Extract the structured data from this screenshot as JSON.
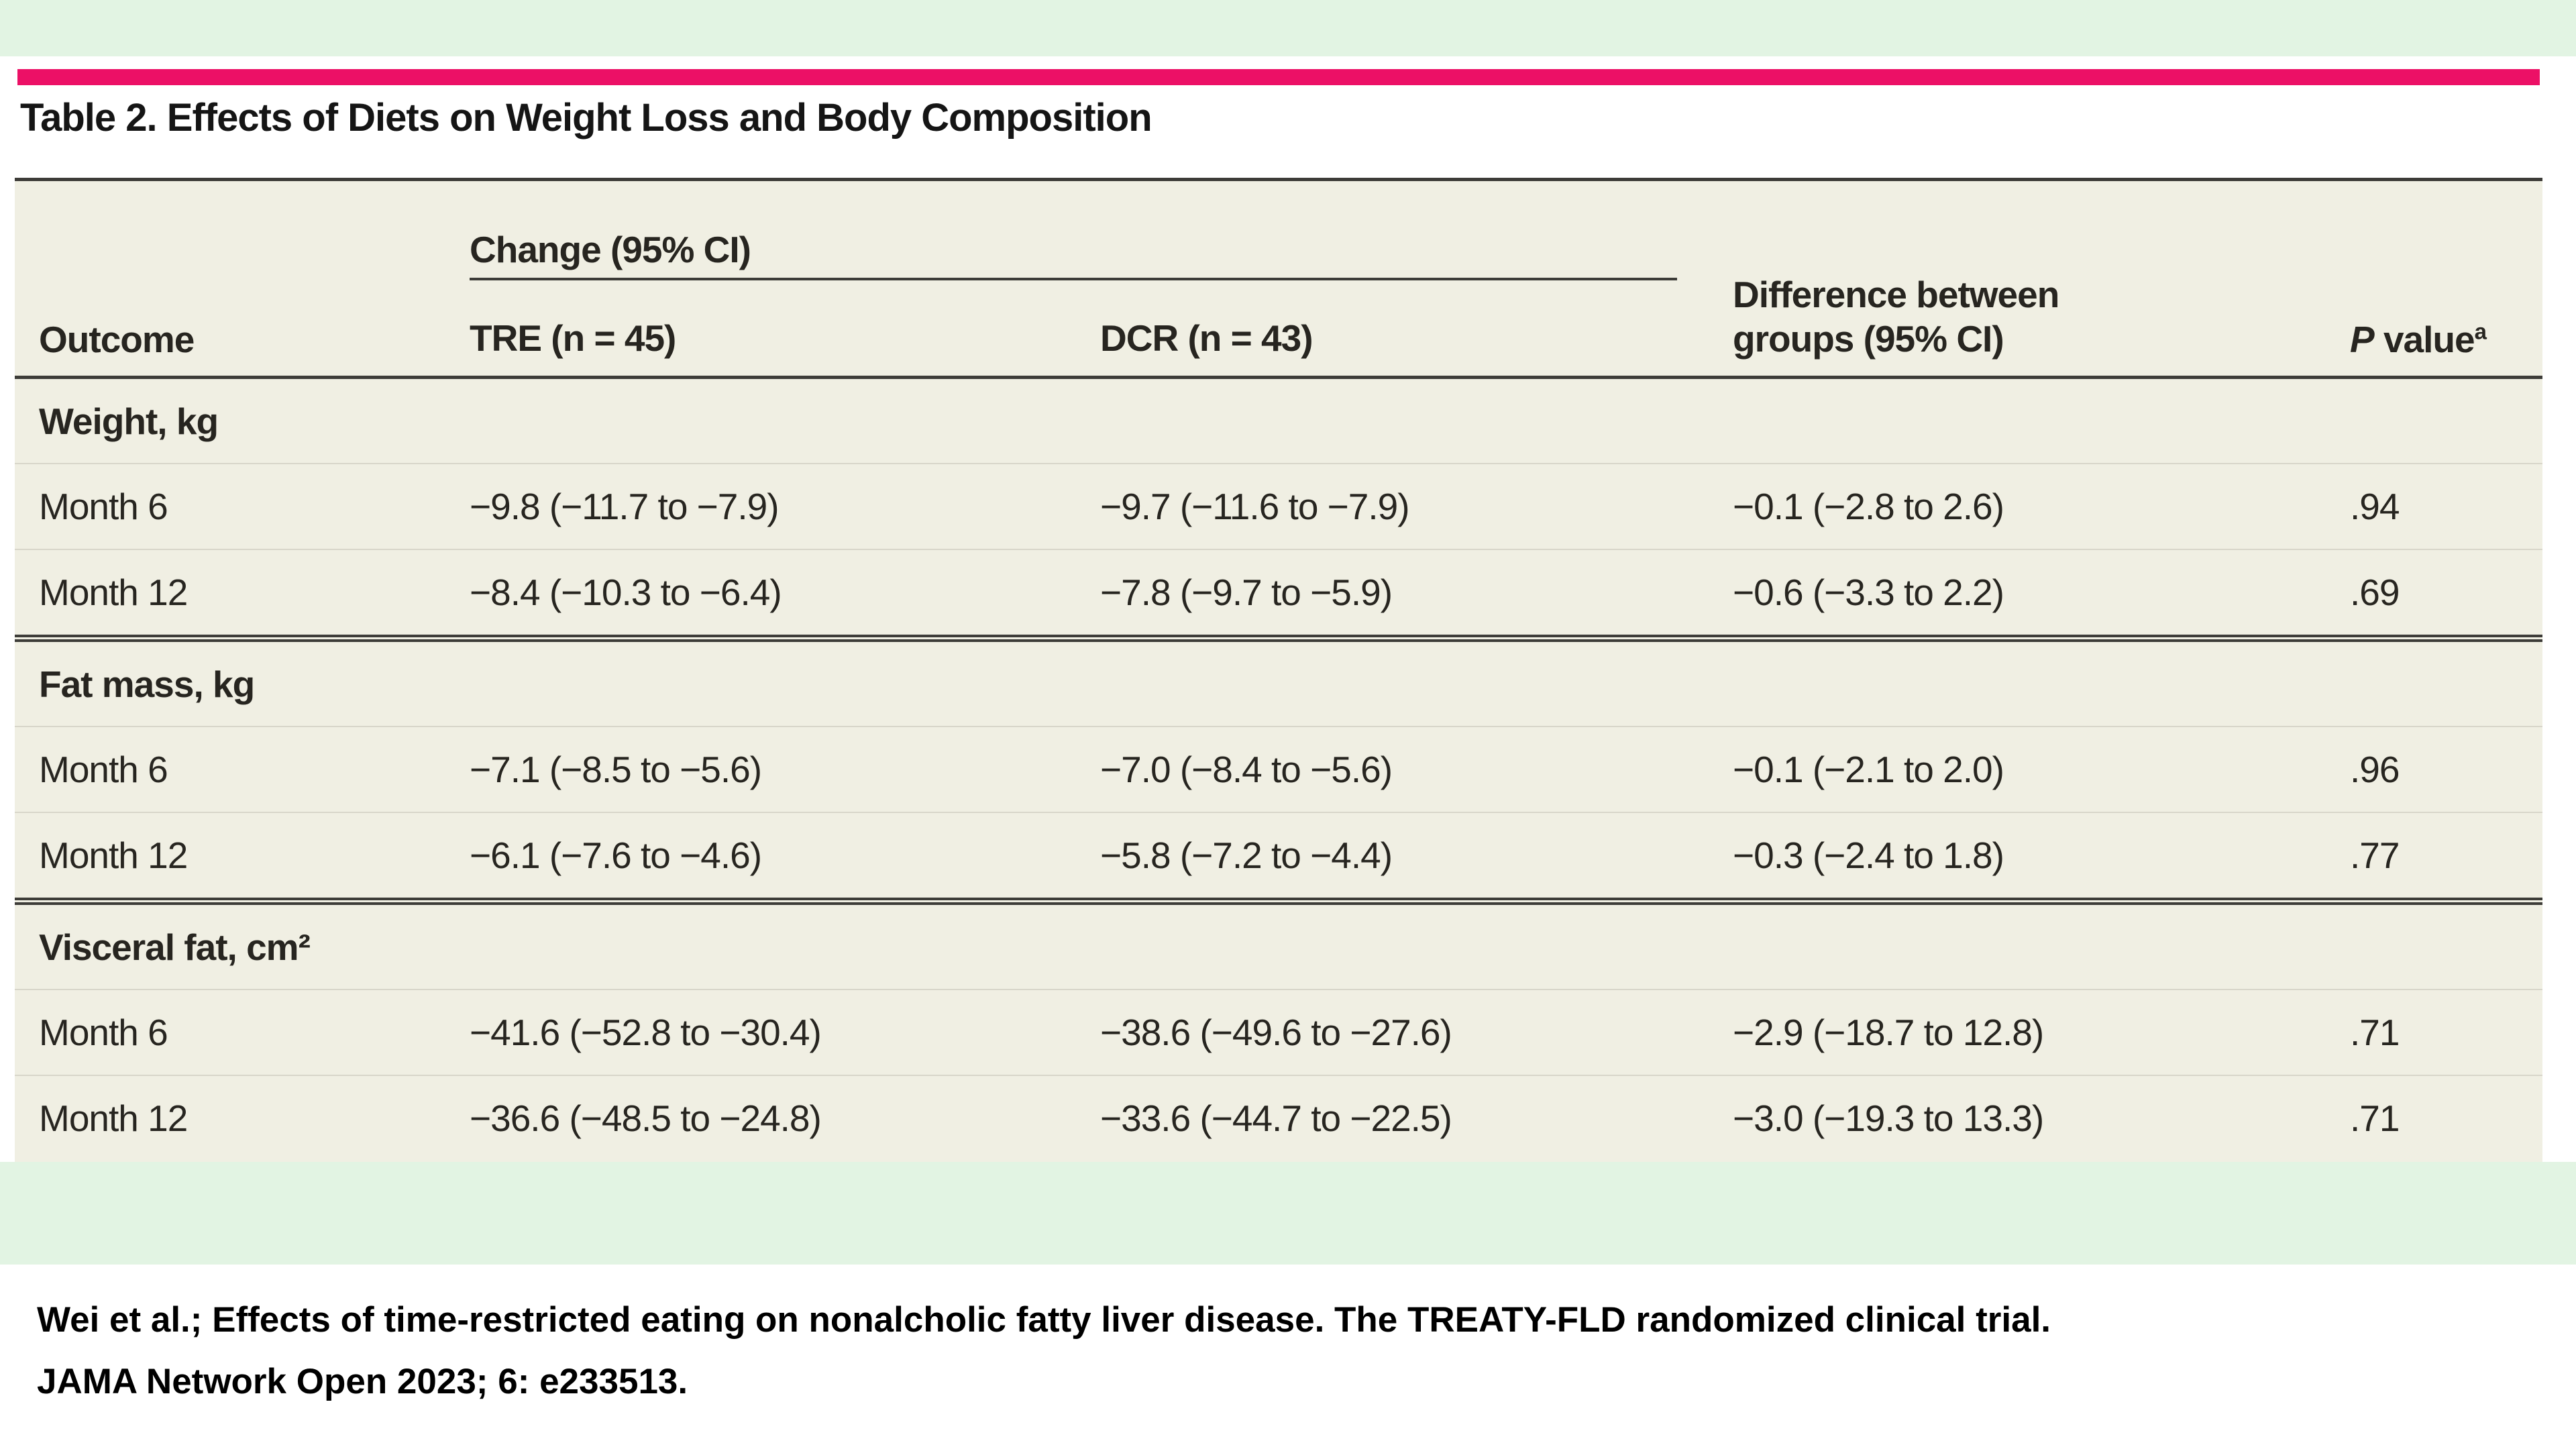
{
  "page": {
    "title": "Table 2. Effects of Diets on Weight Loss and Body Composition",
    "accent_color": "#ec1066",
    "frame_color": "#e2f4e3",
    "table_background": "#f0efe3"
  },
  "table": {
    "spanner_header": "Change (95% CI)",
    "headers": {
      "outcome": "Outcome",
      "tre": "TRE (n = 45)",
      "dcr": "DCR (n = 43)",
      "difference": "Difference between\ngroups (95% CI)",
      "p_prefix": "P",
      "p_rest": " value",
      "p_sup": "a"
    },
    "sections": [
      {
        "label": "Weight, kg",
        "rows": [
          {
            "outcome": "Month 6",
            "tre": "−9.8 (−11.7 to −7.9)",
            "dcr": "−9.7 (−11.6 to −7.9)",
            "diff": "−0.1 (−2.8 to 2.6)",
            "p": ".94"
          },
          {
            "outcome": "Month 12",
            "tre": "−8.4 (−10.3 to −6.4)",
            "dcr": "−7.8 (−9.7 to −5.9)",
            "diff": "−0.6 (−3.3 to 2.2)",
            "p": ".69"
          }
        ]
      },
      {
        "label": "Fat mass, kg",
        "rows": [
          {
            "outcome": "Month 6",
            "tre": "−7.1 (−8.5 to −5.6)",
            "dcr": "−7.0 (−8.4 to −5.6)",
            "diff": "−0.1 (−2.1 to 2.0)",
            "p": ".96"
          },
          {
            "outcome": "Month 12",
            "tre": "−6.1 (−7.6 to −4.6)",
            "dcr": "−5.8 (−7.2 to −4.4)",
            "diff": "−0.3 (−2.4 to 1.8)",
            "p": ".77"
          }
        ]
      },
      {
        "label": "Visceral fat, cm²",
        "rows": [
          {
            "outcome": "Month 6",
            "tre": "−41.6 (−52.8 to −30.4)",
            "dcr": "−38.6 (−49.6 to −27.6)",
            "diff": "−2.9 (−18.7 to 12.8)",
            "p": ".71"
          },
          {
            "outcome": "Month 12",
            "tre": "−36.6 (−48.5 to −24.8)",
            "dcr": "−33.6 (−44.7 to −22.5)",
            "diff": "−3.0 (−19.3 to 13.3)",
            "p": ".71"
          }
        ]
      }
    ]
  },
  "citation": {
    "line1": "Wei et al.; Effects of time-restricted eating on nonalcholic fatty liver disease. The TREATY-FLD randomized clinical trial.",
    "line2": "JAMA Network Open 2023; 6: e233513."
  }
}
